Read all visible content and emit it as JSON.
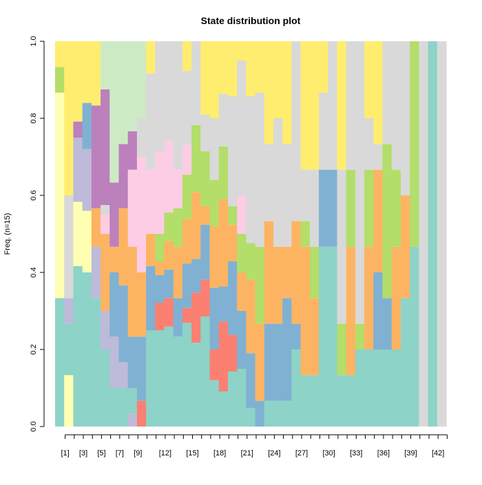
{
  "chart_data": {
    "type": "area",
    "title": "State distribution plot",
    "ylabel": "Freq. (n=15)",
    "xlabel": "",
    "ylim": [
      0,
      1
    ],
    "y_ticks": [
      "0.0",
      "0.2",
      "0.4",
      "0.6",
      "0.8",
      "1.0"
    ],
    "y_tick_values": [
      0,
      0.2,
      0.4,
      0.6,
      0.8,
      1.0
    ],
    "x_tick_labels": [
      "[1]",
      "[3]",
      "[5]",
      "[7]",
      "[9]",
      "[12]",
      "[15]",
      "[18]",
      "[21]",
      "[24]",
      "[27]",
      "[30]",
      "[33]",
      "[36]",
      "[39]",
      "[42]"
    ],
    "x_tick_positions": [
      1,
      3,
      5,
      7,
      9,
      12,
      15,
      18,
      21,
      24,
      27,
      30,
      33,
      36,
      39,
      42
    ],
    "n_positions": 43,
    "grid": false,
    "legend": "none",
    "state_colors": {
      "S1": "#8DD3C7",
      "S2": "#BEBADA",
      "S3": "#FB8072",
      "S4": "#80B1D3",
      "S5": "#FDB462",
      "S6": "#B3DE69",
      "S7": "#FCCDE5",
      "S8": "#D9D9D9",
      "S9": "#BC80BD",
      "S10": "#CCEBC5",
      "S11": "#FFED6F",
      "S12": "#FFFFB3"
    },
    "columns": [
      [
        [
          "S1",
          5
        ],
        [
          "S12",
          8
        ],
        [
          "S6",
          1
        ],
        [
          "S11",
          1
        ]
      ],
      [
        [
          "S12",
          2
        ],
        [
          "S1",
          2
        ],
        [
          "S2",
          1
        ],
        [
          "S8",
          4
        ],
        [
          "S11",
          6
        ]
      ],
      [
        [
          "S1",
          10
        ],
        [
          "S12",
          4
        ],
        [
          "S2",
          4
        ],
        [
          "S9",
          1
        ],
        [
          "S11",
          5
        ]
      ],
      [
        [
          "S1",
          10
        ],
        [
          "S12",
          4
        ],
        [
          "S2",
          4
        ],
        [
          "S4",
          3
        ],
        [
          "S11",
          4
        ]
      ],
      [
        [
          "S1",
          10
        ],
        [
          "S2",
          4
        ],
        [
          "S5",
          3
        ],
        [
          "S9",
          8
        ],
        [
          "S11",
          5
        ]
      ],
      [
        [
          "S1",
          8
        ],
        [
          "S2",
          4
        ],
        [
          "S5",
          8
        ],
        [
          "S7",
          2
        ],
        [
          "S8",
          1
        ],
        [
          "S9",
          12
        ],
        [
          "S10",
          5
        ]
      ],
      [
        [
          "S1",
          3
        ],
        [
          "S2",
          4
        ],
        [
          "S4",
          5
        ],
        [
          "S5",
          2
        ],
        [
          "S9",
          5
        ],
        [
          "S10",
          11
        ]
      ],
      [
        [
          "S1",
          3
        ],
        [
          "S2",
          2
        ],
        [
          "S4",
          6
        ],
        [
          "S5",
          6
        ],
        [
          "S9",
          5
        ],
        [
          "S10",
          8
        ]
      ],
      [
        [
          "S2",
          1
        ],
        [
          "S3",
          0
        ],
        [
          "S1",
          2
        ],
        [
          "S4",
          4
        ],
        [
          "S5",
          7
        ],
        [
          "S7",
          6
        ],
        [
          "S9",
          3
        ],
        [
          "S10",
          7
        ]
      ],
      [
        [
          "S3",
          2
        ],
        [
          "S4",
          5
        ],
        [
          "S5",
          5
        ],
        [
          "S7",
          9
        ],
        [
          "S8",
          3
        ],
        [
          "S10",
          6
        ]
      ],
      [
        [
          "S1",
          6
        ],
        [
          "S4",
          4
        ],
        [
          "S5",
          2
        ],
        [
          "S7",
          4
        ],
        [
          "S8",
          6
        ],
        [
          "S11",
          2
        ]
      ],
      [
        [
          "S1",
          7
        ],
        [
          "S3",
          2
        ],
        [
          "S4",
          2
        ],
        [
          "S5",
          1
        ],
        [
          "S6",
          2
        ],
        [
          "S7",
          6
        ],
        [
          "S8",
          8
        ]
      ],
      [
        [
          "S1",
          7
        ],
        [
          "S3",
          2
        ],
        [
          "S4",
          2
        ],
        [
          "S5",
          2
        ],
        [
          "S6",
          2
        ],
        [
          "S7",
          5
        ],
        [
          "S8",
          7
        ]
      ],
      [
        [
          "S1",
          7
        ],
        [
          "S4",
          3
        ],
        [
          "S5",
          4
        ],
        [
          "S6",
          3
        ],
        [
          "S7",
          3
        ],
        [
          "S8",
          10
        ]
      ],
      [
        [
          "S1",
          7
        ],
        [
          "S3",
          1
        ],
        [
          "S4",
          3
        ],
        [
          "S5",
          3
        ],
        [
          "S6",
          3
        ],
        [
          "S7",
          2
        ],
        [
          "S8",
          5
        ],
        [
          "S11",
          2
        ]
      ],
      [
        [
          "S1",
          5
        ],
        [
          "S3",
          3
        ],
        [
          "S4",
          2
        ],
        [
          "S5",
          4
        ],
        [
          "S6",
          4
        ],
        [
          "S8",
          5
        ]
      ],
      [
        [
          "S1",
          6
        ],
        [
          "S3",
          2
        ],
        [
          "S4",
          3
        ],
        [
          "S5",
          1
        ],
        [
          "S6",
          3
        ],
        [
          "S8",
          2
        ],
        [
          "S11",
          4
        ]
      ],
      [
        [
          "S1",
          3
        ],
        [
          "S3",
          2
        ],
        [
          "S4",
          4
        ],
        [
          "S5",
          4
        ],
        [
          "S6",
          3
        ],
        [
          "S8",
          4
        ],
        [
          "S11",
          5
        ]
      ],
      [
        [
          "S1",
          2
        ],
        [
          "S3",
          4
        ],
        [
          "S4",
          2
        ],
        [
          "S5",
          5
        ],
        [
          "S6",
          3
        ],
        [
          "S8",
          3
        ],
        [
          "S11",
          3
        ]
      ],
      [
        [
          "S1",
          3
        ],
        [
          "S3",
          2
        ],
        [
          "S4",
          4
        ],
        [
          "S5",
          2
        ],
        [
          "S6",
          1
        ],
        [
          "S8",
          6
        ],
        [
          "S11",
          3
        ]
      ],
      [
        [
          "S1",
          3
        ],
        [
          "S4",
          3
        ],
        [
          "S5",
          2
        ],
        [
          "S6",
          2
        ],
        [
          "S7",
          2
        ],
        [
          "S8",
          7
        ],
        [
          "S11",
          1
        ]
      ],
      [
        [
          "S1",
          1
        ],
        [
          "S4",
          3
        ],
        [
          "S5",
          4
        ],
        [
          "S6",
          2
        ],
        [
          "S8",
          8
        ],
        [
          "S11",
          3
        ]
      ],
      [
        [
          "S1",
          0
        ],
        [
          "S3",
          0
        ],
        [
          "S4",
          1
        ],
        [
          "S5",
          3
        ],
        [
          "S6",
          3
        ],
        [
          "S8",
          6
        ],
        [
          "S11",
          2
        ]
      ],
      [
        [
          "S1",
          1
        ],
        [
          "S2",
          0
        ],
        [
          "S4",
          3
        ],
        [
          "S5",
          4
        ],
        [
          "S8",
          3
        ],
        [
          "S11",
          4
        ]
      ],
      [
        [
          "S1",
          1
        ],
        [
          "S3",
          0
        ],
        [
          "S4",
          3
        ],
        [
          "S5",
          3
        ],
        [
          "S8",
          5
        ],
        [
          "S11",
          3
        ]
      ],
      [
        [
          "S1",
          1
        ],
        [
          "S4",
          4
        ],
        [
          "S5",
          2
        ],
        [
          "S8",
          4
        ],
        [
          "S11",
          4
        ]
      ]
    ],
    "note_columns": "stacked proportions per position, bottom-to-top; counts out of n=15"
  }
}
